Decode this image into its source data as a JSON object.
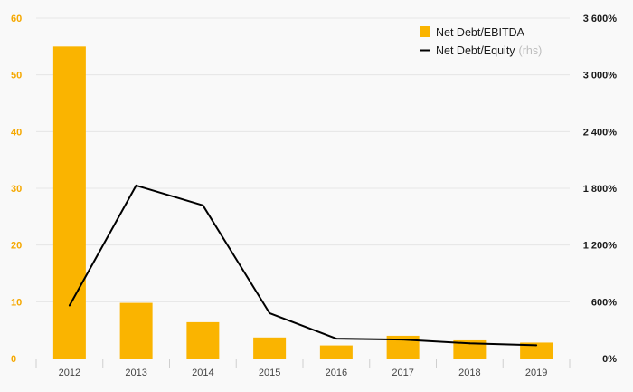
{
  "colors": {
    "bar": "#fab400",
    "line": "#000000",
    "grid": "#e6e6e6",
    "left_axis_text": "#f5a800",
    "right_axis_text": "#1a1a1a",
    "background": "#f9f9f9"
  },
  "chart_data": {
    "type": "bar",
    "categories": [
      "2012",
      "2013",
      "2014",
      "2015",
      "2016",
      "2017",
      "2018",
      "2019"
    ],
    "series": [
      {
        "name": "Net Debt/EBITDA",
        "type": "bar",
        "axis": "left",
        "values": [
          55.0,
          9.8,
          6.4,
          3.7,
          2.3,
          4.0,
          3.2,
          2.8
        ]
      },
      {
        "name": "Net Debt/Equity",
        "name_suffix": "(rhs)",
        "type": "line",
        "axis": "right",
        "values": [
          560,
          1830,
          1620,
          480,
          210,
          200,
          160,
          140
        ]
      }
    ],
    "y_left": {
      "lim": [
        0,
        60
      ],
      "ticks": [
        0,
        10,
        20,
        30,
        40,
        50,
        60
      ],
      "tick_labels": [
        "0",
        "10",
        "20",
        "30",
        "40",
        "50",
        "60"
      ]
    },
    "y_right": {
      "lim": [
        0,
        3600
      ],
      "ticks": [
        0,
        600,
        1200,
        1800,
        2400,
        3000,
        3600
      ],
      "tick_labels": [
        "0%",
        "600%",
        "1 200%",
        "1 800%",
        "2 400%",
        "3 000%",
        "3 600%"
      ]
    },
    "grid": true,
    "legend_position": "top-right"
  }
}
